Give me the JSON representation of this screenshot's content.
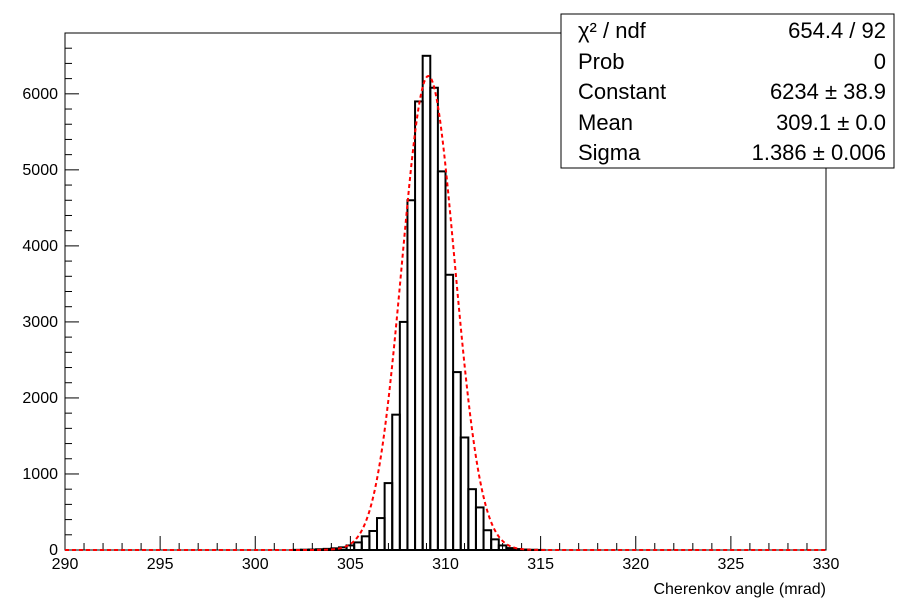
{
  "chart_data": {
    "type": "histogram",
    "xlabel": "Cherenkov angle (mrad)",
    "ylabel": "",
    "xlim": [
      290,
      330
    ],
    "ylim": [
      0,
      6800
    ],
    "x_ticks": [
      290,
      295,
      300,
      305,
      310,
      315,
      320,
      325,
      330
    ],
    "y_ticks": [
      0,
      1000,
      2000,
      3000,
      4000,
      5000,
      6000
    ],
    "x_tick_labels": [
      "290",
      "295",
      "300",
      "305",
      "310",
      "315",
      "320",
      "325",
      "330"
    ],
    "y_tick_labels": [
      "0",
      "1000",
      "2000",
      "3000",
      "4000",
      "5000",
      "6000"
    ],
    "bin_edges_start": 290.0,
    "bin_width": 0.4,
    "counts": [
      0,
      0,
      0,
      0,
      0,
      0,
      0,
      0,
      0,
      0,
      0,
      0,
      0,
      0,
      0,
      0,
      0,
      0,
      0,
      0,
      0,
      0,
      0,
      0,
      0,
      0,
      0,
      0,
      0,
      0,
      2,
      4,
      6,
      10,
      15,
      22,
      35,
      60,
      100,
      180,
      250,
      420,
      880,
      1780,
      3000,
      4600,
      5900,
      6500,
      6080,
      4980,
      3620,
      2340,
      1480,
      800,
      560,
      260,
      140,
      60,
      25,
      12,
      6,
      3,
      1,
      0,
      0,
      0,
      0,
      0,
      0,
      0,
      0,
      0,
      0,
      0,
      0,
      0,
      0,
      0,
      0,
      0,
      0,
      0,
      0,
      0,
      0,
      0,
      0,
      0,
      0,
      0,
      0,
      0,
      0,
      0,
      0,
      0,
      0,
      0,
      0,
      0
    ],
    "fit": {
      "function": "gaus",
      "constant": 6234,
      "mean": 309.1,
      "sigma": 1.386,
      "line_color": "#ff0000",
      "line_style": "dashed"
    },
    "histogram_line_color": "#000000",
    "grid": false,
    "legend": "none"
  },
  "stats_box": {
    "placement": "top-right",
    "rows": [
      {
        "label": "χ² / ndf",
        "value": "654.4 / 92"
      },
      {
        "label": "Prob",
        "value": "0"
      },
      {
        "label": "Constant",
        "value": "6234 ± 38.9"
      },
      {
        "label": "Mean",
        "value": "309.1 ± 0.0"
      },
      {
        "label": "Sigma",
        "value": "1.386 ± 0.006"
      }
    ]
  }
}
